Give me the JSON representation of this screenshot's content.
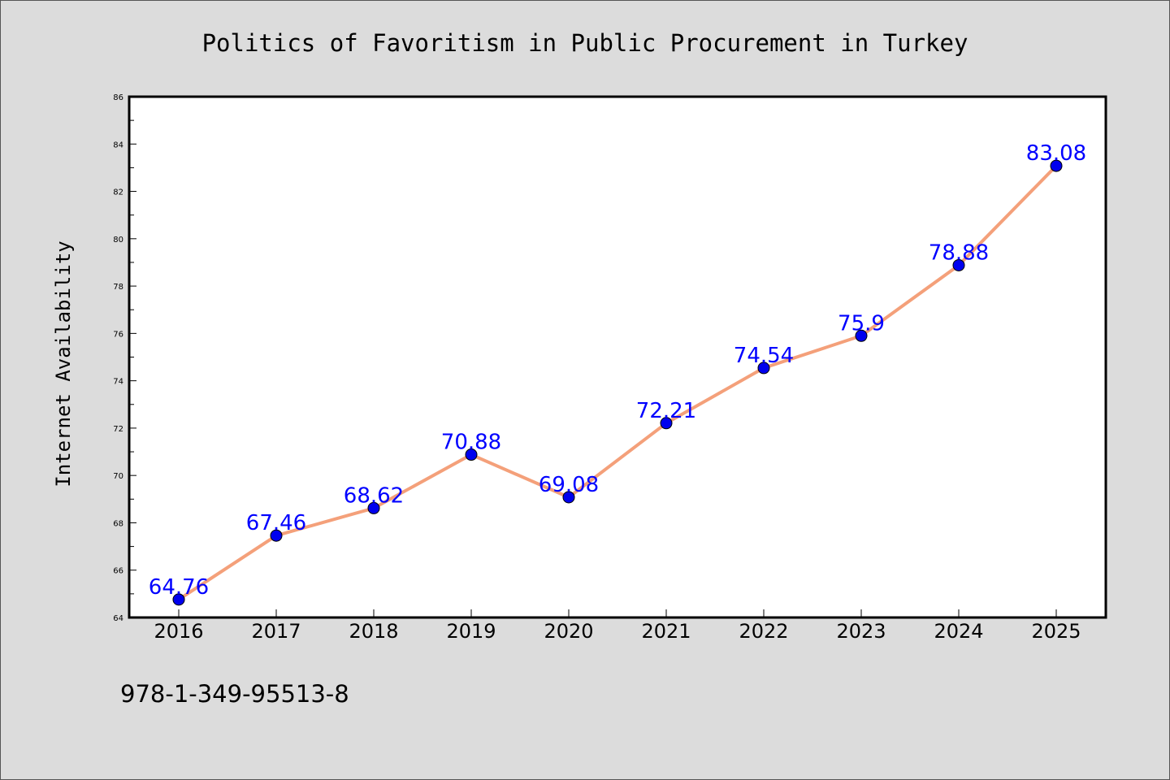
{
  "chart_data": {
    "type": "line",
    "title": "Politics of Favoritism in Public Procurement in Turkey",
    "xlabel": "",
    "ylabel": "Internet Availability",
    "categories": [
      "2016",
      "2017",
      "2018",
      "2019",
      "2020",
      "2021",
      "2022",
      "2023",
      "2024",
      "2025"
    ],
    "values": [
      64.76,
      67.46,
      68.62,
      70.88,
      69.08,
      72.21,
      74.54,
      75.9,
      78.88,
      83.08
    ],
    "data_labels": [
      "64.76",
      "67.46",
      "68.62",
      "70.88",
      "69.08",
      "72.21",
      "74.54",
      "75.9",
      "78.88",
      "83.08"
    ],
    "ylim": [
      64,
      86
    ],
    "yticks": [
      "64",
      "66",
      "68",
      "70",
      "72",
      "74",
      "76",
      "78",
      "80",
      "82",
      "84",
      "86"
    ],
    "grid": false,
    "legend": "none",
    "colors": {
      "line": "#f4a07a",
      "marker": "#0000ee",
      "data_label": "#0000ff",
      "background": "#dcdcdc",
      "plot_background": "#ffffff"
    }
  },
  "footer": {
    "isbn": "978-1-349-95513-8"
  }
}
